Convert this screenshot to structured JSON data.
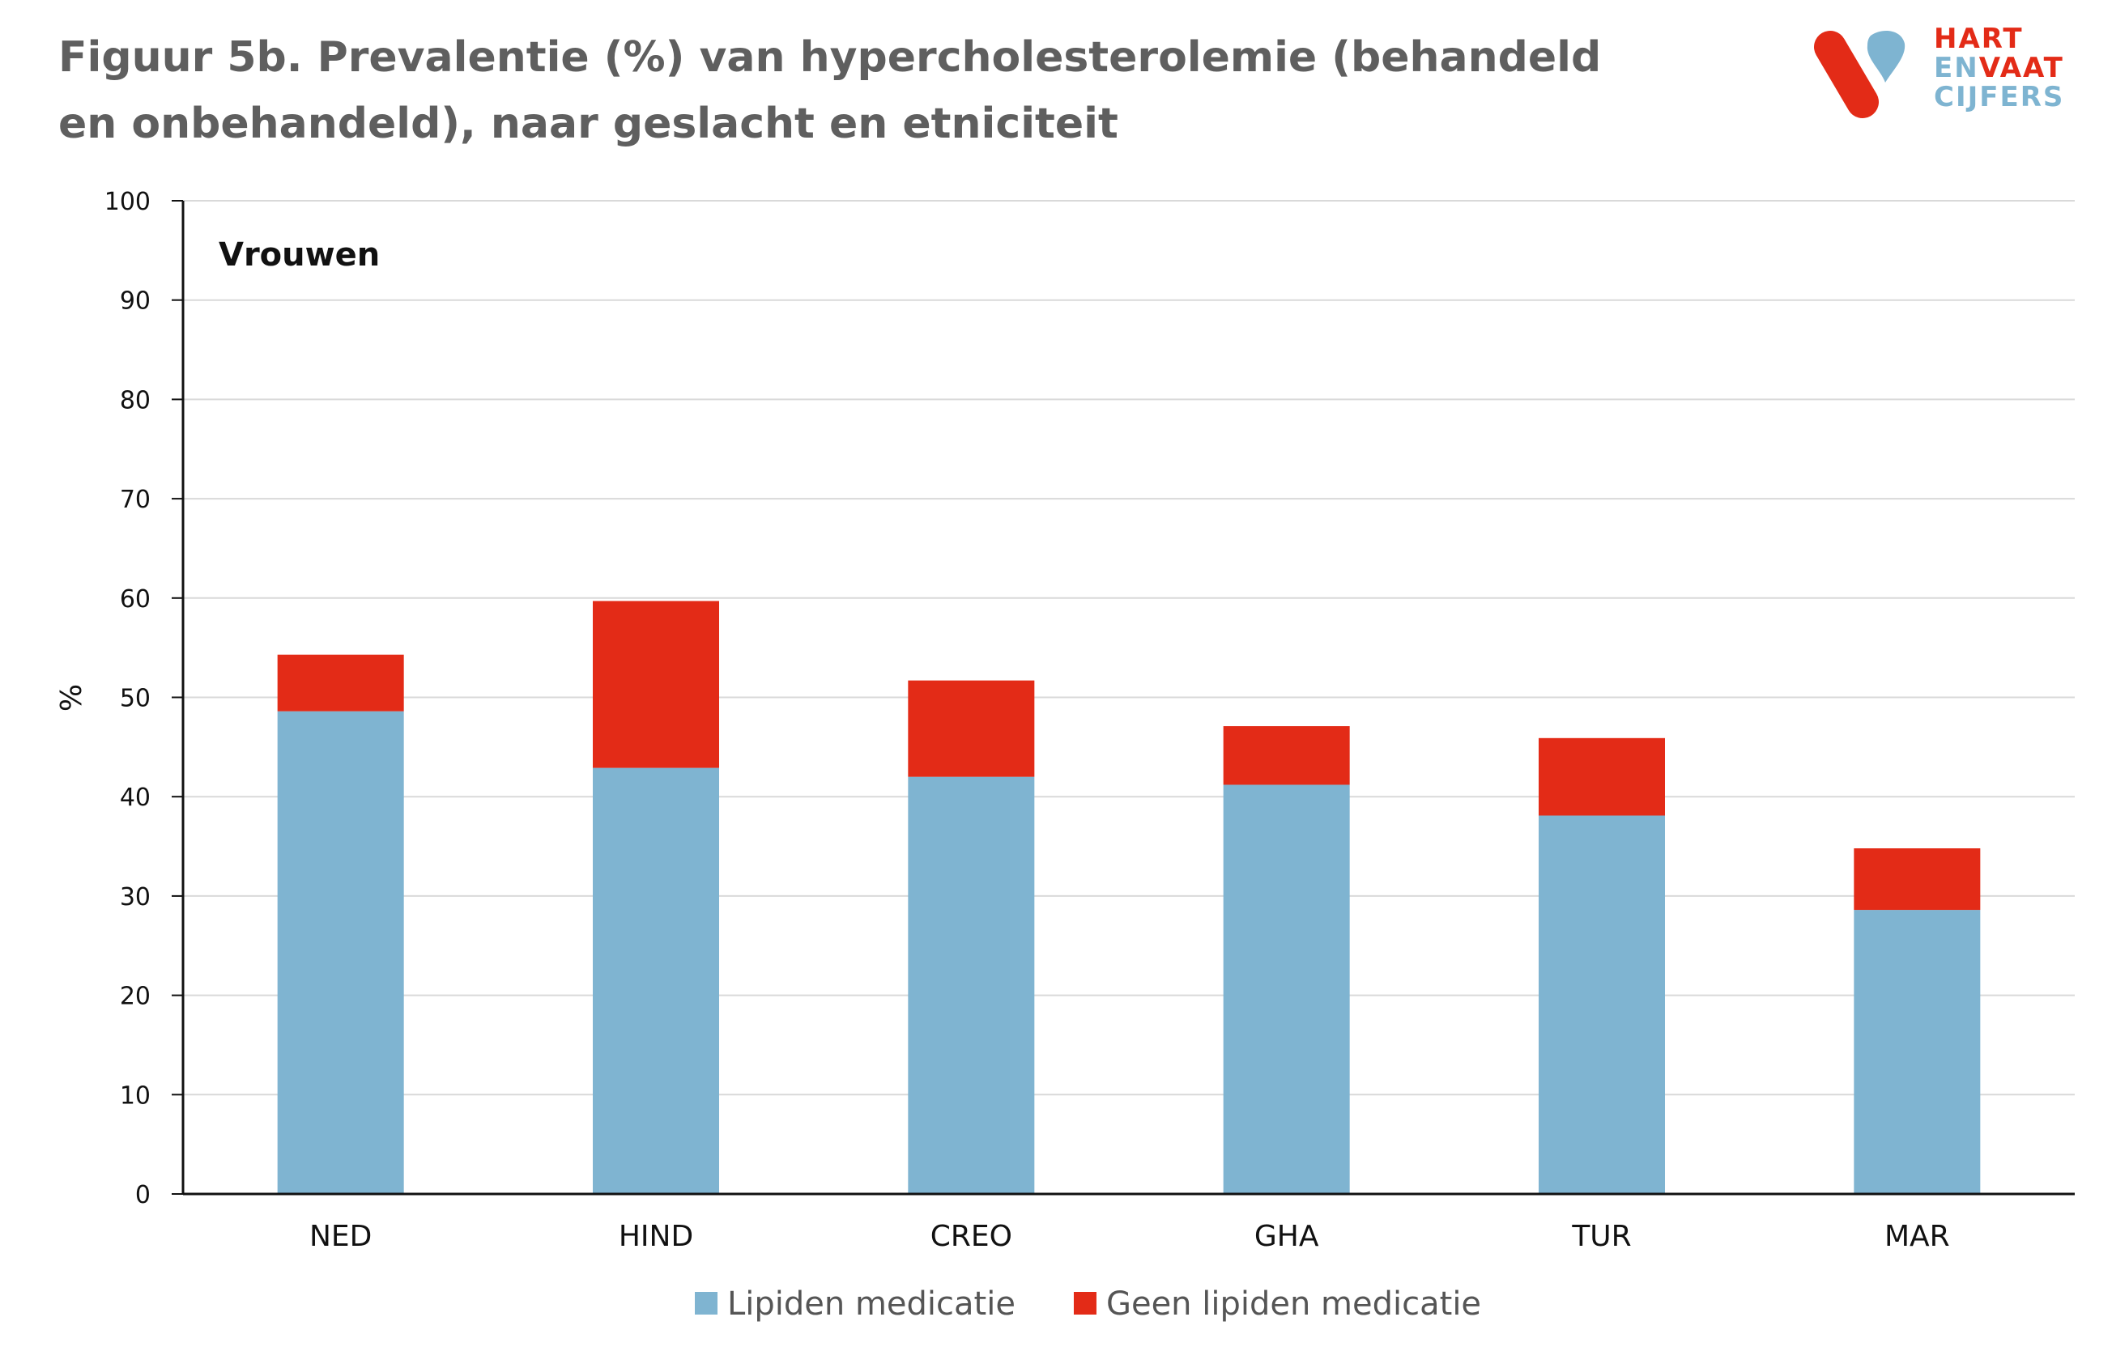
{
  "title": "Figuur 5b. Prevalentie (%) van hypercholesterolemie (behandeld en onbehandeld), naar geslacht en etniciteit",
  "logo": {
    "line1": "HART",
    "line2_a": "EN",
    "line2_b": "VAAT",
    "line3": "CIJFERS",
    "red": "#e32b17",
    "blue": "#7eb4d1"
  },
  "chart_data": {
    "type": "bar",
    "stacked": true,
    "panel_label": "Vrouwen",
    "ylabel": "%",
    "xlabel": "",
    "ylim": [
      0,
      100
    ],
    "yticks": [
      0,
      10,
      20,
      30,
      40,
      50,
      60,
      70,
      80,
      90,
      100
    ],
    "grid": true,
    "legend_position": "bottom",
    "categories": [
      "NED",
      "HIND",
      "CREO",
      "GHA",
      "TUR",
      "MAR"
    ],
    "series": [
      {
        "name": "Lipiden medicatie",
        "color": "#7fb4d1",
        "values": [
          48.6,
          42.9,
          42.0,
          41.2,
          38.1,
          28.6
        ]
      },
      {
        "name": "Geen lipiden medicatie",
        "color": "#e32b17",
        "values": [
          5.7,
          16.8,
          9.7,
          5.9,
          7.8,
          6.2
        ]
      }
    ]
  }
}
